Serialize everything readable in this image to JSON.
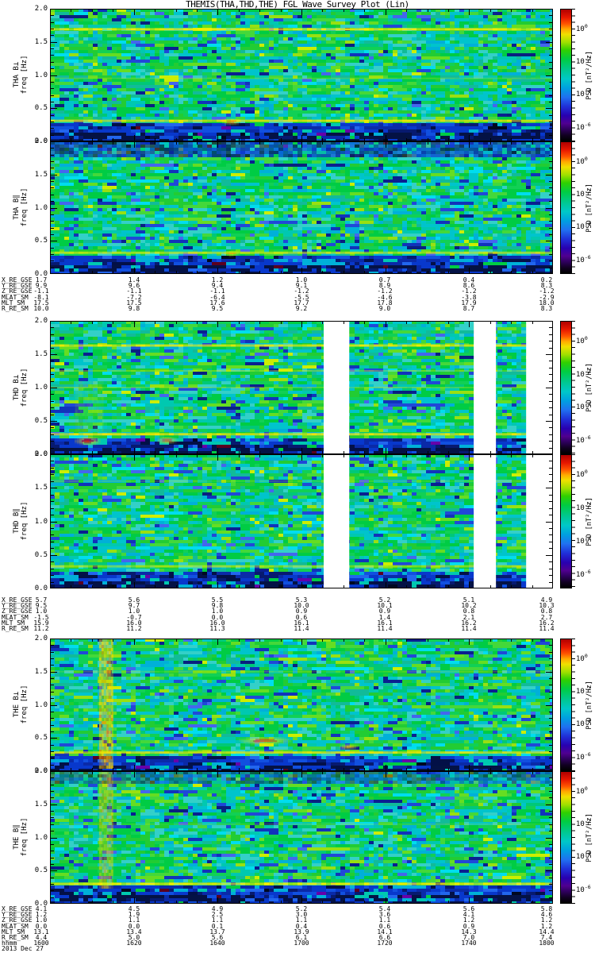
{
  "title": "THEMIS(THA,THD,THE) FGL Wave Survey Plot (Lin)",
  "colorbar": {
    "base": "10",
    "exponents": [
      "0",
      "-2",
      "-4",
      "-6"
    ],
    "positions": [
      0.13,
      0.38,
      0.625,
      0.875
    ],
    "unit_label": "PSD [nT²/Hz]"
  },
  "axes": {
    "freq_ticks": [
      "2.0",
      "1.5",
      "1.0",
      "0.5",
      "0.0"
    ],
    "freq_minor_step": 0.1,
    "time_major_min": 20,
    "time_minor_min": 5
  },
  "palette": {
    "deep": "#041245",
    "gap": "#ffffff",
    "base": [
      [
        "#00cc44",
        0.14
      ],
      [
        "#11d055",
        0.08
      ],
      [
        "#22cc33",
        0.09
      ],
      [
        "#44d83a",
        0.06
      ],
      [
        "#00c878",
        0.05
      ],
      [
        "#00c8b0",
        0.09
      ],
      [
        "#00c4cc",
        0.11
      ],
      [
        "#33d0c8",
        0.07
      ],
      [
        "#00b0d8",
        0.05
      ],
      [
        "#66dd22",
        0.04
      ],
      [
        "#99e011",
        0.018
      ],
      [
        "#ccee00",
        0.008
      ],
      [
        "#00ddee",
        0.03
      ],
      [
        "#11bb99",
        0.045
      ],
      [
        "#2048d8",
        0.03
      ],
      [
        "#1133bb",
        0.018
      ],
      [
        "#4466ee",
        0.015
      ],
      [
        "#0a1f90",
        0.012
      ],
      [
        "#082080",
        0.008
      ]
    ],
    "low": [
      [
        "#0838cc",
        0.28
      ],
      [
        "#0a2aa8",
        0.16
      ],
      [
        "#1150e0",
        0.12
      ],
      [
        "#00b0d8",
        0.09
      ],
      [
        "#071a70",
        0.1
      ],
      [
        "#00c8b0",
        0.05
      ],
      [
        "#031047",
        0.07
      ],
      [
        "#2266ee",
        0.05
      ],
      [
        "#00cc44",
        0.02
      ],
      [
        "#5a0020",
        0.012
      ],
      [
        "#000820",
        0.02
      ],
      [
        "#6600aa",
        0.008
      ]
    ]
  },
  "pairs": [
    {
      "satellite": "THA",
      "annotations": {
        "rows": [
          {
            "label": "X_RE_GSE",
            "values": [
              "1.7",
              "1.4",
              "1.2",
              "1.0",
              "0.7",
              "0.4",
              "0.2"
            ]
          },
          {
            "label": "Y_RE_GSE",
            "values": [
              "9.9",
              "9.6",
              "9.4",
              "9.1",
              "8.9",
              "8.6",
              "8.3"
            ]
          },
          {
            "label": "Z_RE_GSE",
            "values": [
              "-1.1",
              "-1.1",
              "-1.1",
              "-1.2",
              "-1.2",
              "-1.2",
              "-1.2"
            ]
          },
          {
            "label": "MLAT_SM",
            "values": [
              "-8.1",
              "-7.2",
              "-6.4",
              "-5.5",
              "-4.6",
              "-3.8",
              "-2.9"
            ]
          },
          {
            "label": "MLT_SM",
            "values": [
              "17.5",
              "17.5",
              "17.6",
              "17.7",
              "17.8",
              "17.9",
              "18.0"
            ]
          },
          {
            "label": "R_RE_SM",
            "values": [
              "10.0",
              "9.8",
              "9.5",
              "9.2",
              "9.0",
              "8.7",
              "8.3"
            ]
          }
        ]
      }
    },
    {
      "satellite": "THD",
      "annotations": {
        "rows": [
          {
            "label": "X_RE_GSE",
            "values": [
              "5.7",
              "5.6",
              "5.5",
              "5.3",
              "5.2",
              "5.1",
              "4.9"
            ]
          },
          {
            "label": "Y_RE_GSE",
            "values": [
              "9.5",
              "9.7",
              "9.8",
              "10.0",
              "10.1",
              "10.2",
              "10.3"
            ]
          },
          {
            "label": "Z_RE_GSE",
            "values": [
              "1.0",
              "1.0",
              "1.0",
              "0.9",
              "0.9",
              "0.8",
              "0.8"
            ]
          },
          {
            "label": "MLAT_SM",
            "values": [
              "-1.5",
              "-0.7",
              "0.0",
              "0.6",
              "1.4",
              "2.1",
              "2.7"
            ]
          },
          {
            "label": "MLT_SM",
            "values": [
              "15.9",
              "16.0",
              "16.0",
              "16.1",
              "16.1",
              "16.2",
              "16.2"
            ]
          },
          {
            "label": "R_RE_SM",
            "values": [
              "11.2",
              "11.2",
              "11.3",
              "11.4",
              "11.4",
              "11.4",
              "11.4"
            ]
          }
        ]
      }
    },
    {
      "satellite": "THE",
      "annotations": {
        "rows": [
          {
            "label": "X_RE_GSE",
            "values": [
              "4.1",
              "4.5",
              "4.9",
              "5.2",
              "5.4",
              "5.6",
              "5.8"
            ]
          },
          {
            "label": "Y_RE_GSE",
            "values": [
              "1.2",
              "1.9",
              "2.5",
              "3.0",
              "3.6",
              "4.1",
              "4.6"
            ]
          },
          {
            "label": "Z_RE_GSE",
            "values": [
              "1.0",
              "1.1",
              "1.1",
              "1.1",
              "1.1",
              "1.2",
              "1.2"
            ]
          },
          {
            "label": "MLAT_SM",
            "values": [
              "0.0",
              "0.0",
              "0.1",
              "0.4",
              "0.6",
              "0.9",
              "1.2"
            ]
          },
          {
            "label": "MLT_SM",
            "values": [
              "13.1",
              "13.4",
              "13.7",
              "13.9",
              "14.1",
              "14.3",
              "14.4"
            ]
          },
          {
            "label": "R_RE_SM",
            "values": [
              "4.4",
              "5.0",
              "5.6",
              "6.1",
              "6.6",
              "7.0",
              "7.4"
            ]
          }
        ]
      }
    }
  ],
  "footer": {
    "label": "hhmm",
    "times": [
      "1600",
      "1620",
      "1640",
      "1700",
      "1720",
      "1740",
      "1800"
    ],
    "date": "2013 Dec 27"
  },
  "chart_data": [
    {
      "type": "heatmap",
      "satellite": "THA",
      "component": "B-perp",
      "panel_label": "THA B⊥",
      "ylabel": "freq [Hz]",
      "ylim": [
        0,
        2
      ],
      "xlim_hhmm": [
        "1600",
        "1800"
      ],
      "duration_min": 120,
      "zlabel": "PSD [nT²/Hz]",
      "zticks": [
        "10^0",
        "10^-2",
        "10^-4",
        "10^-6"
      ],
      "low_band_f": 0.27,
      "gaps": [],
      "features": [
        {
          "kind": "hline",
          "f": 1.69,
          "color": "#ffee00",
          "h": 3,
          "alpha": 0.95
        },
        {
          "kind": "hline",
          "f": 0.95,
          "color": "#ddee00",
          "h": 2,
          "alpha": 0.3
        },
        {
          "kind": "hline",
          "f": 0.31,
          "color": "#ffe600",
          "h": 3,
          "alpha": 0.9
        },
        {
          "kind": "blob",
          "t": 43,
          "f": 0.31,
          "dt": 2.5,
          "df": 0.055,
          "core": "#ff8800",
          "halo": "#ffee00"
        }
      ]
    },
    {
      "type": "heatmap",
      "satellite": "THA",
      "component": "B-parallel",
      "panel_label": "THA B∥",
      "ylabel": "freq [Hz]",
      "ylim": [
        0,
        2
      ],
      "xlim_hhmm": [
        "1600",
        "1800"
      ],
      "duration_min": 120,
      "zlabel": "PSD [nT²/Hz]",
      "zticks": [
        "10^0",
        "10^-2",
        "10^-4",
        "10^-6"
      ],
      "low_band_f": 0.27,
      "gaps": [],
      "features": [
        {
          "kind": "band",
          "f0": 1.8,
          "f1": 2.0,
          "alpha": 0.85
        },
        {
          "kind": "hline",
          "f": 0.32,
          "color": "#eeee00",
          "h": 3,
          "alpha": 0.8
        },
        {
          "kind": "blob",
          "t": 43,
          "f": 0.32,
          "dt": 2,
          "df": 0.05,
          "core": "#ffaa00",
          "halo": "#eeee00"
        }
      ]
    },
    {
      "type": "heatmap",
      "satellite": "THD",
      "component": "B-perp",
      "panel_label": "THD B⊥",
      "ylabel": "freq [Hz]",
      "ylim": [
        0,
        2
      ],
      "xlim_hhmm": [
        "1600",
        "1800"
      ],
      "duration_min": 120,
      "zlabel": "PSD [nT²/Hz]",
      "zticks": [
        "10^0",
        "10^-2",
        "10^-4",
        "10^-6"
      ],
      "low_band_f": 0.25,
      "gaps": [
        [
          65.3,
          71.4
        ],
        [
          101.1,
          106.4
        ],
        [
          113.6,
          120
        ]
      ],
      "features": [
        {
          "kind": "vstripe",
          "t0": 6,
          "t1": 12.5,
          "f0": 0.35,
          "f1": 1.1,
          "color": "#bbee00",
          "alpha": 0.22
        },
        {
          "kind": "hline",
          "f": 1.63,
          "color": "#ffee00",
          "h": 3,
          "alpha": 0.9
        },
        {
          "kind": "hline",
          "f": 1.25,
          "color": "#eeee00",
          "h": 2,
          "alpha": 0.45
        },
        {
          "kind": "hline",
          "f": 1.0,
          "color": "#ddee00",
          "h": 2,
          "alpha": 0.4
        },
        {
          "kind": "hline",
          "f": 0.3,
          "color": "#ffe600",
          "h": 3,
          "alpha": 0.95
        },
        {
          "kind": "blob",
          "t": 8.7,
          "f": 0.21,
          "dt": 3.4,
          "df": 0.07,
          "core": "#ee1100",
          "halo": "#ffcc00"
        },
        {
          "kind": "blob",
          "t": 27.7,
          "f": 0.22,
          "dt": 2.6,
          "df": 0.06,
          "core": "#ff6600",
          "halo": "#ffdd00"
        }
      ]
    },
    {
      "type": "heatmap",
      "satellite": "THD",
      "component": "B-parallel",
      "panel_label": "THD B∥",
      "ylabel": "freq [Hz]",
      "ylim": [
        0,
        2
      ],
      "xlim_hhmm": [
        "1600",
        "1800"
      ],
      "duration_min": 120,
      "zlabel": "PSD [nT²/Hz]",
      "zticks": [
        "10^0",
        "10^-2",
        "10^-4",
        "10^-6"
      ],
      "low_band_f": 0.27,
      "gaps": [
        [
          65.3,
          71.4
        ],
        [
          101.1,
          106.4
        ],
        [
          113.6,
          120
        ]
      ],
      "features": [
        {
          "kind": "hline",
          "f": 1.6,
          "color": "#ccee00",
          "h": 2,
          "alpha": 0.3
        },
        {
          "kind": "hline",
          "f": 0.33,
          "color": "#ddee00",
          "h": 3,
          "alpha": 0.7
        }
      ]
    },
    {
      "type": "heatmap",
      "satellite": "THE",
      "component": "B-perp",
      "panel_label": "THE B⊥",
      "ylabel": "freq [Hz]",
      "ylim": [
        0,
        2
      ],
      "xlim_hhmm": [
        "1600",
        "1800"
      ],
      "duration_min": 120,
      "zlabel": "PSD [nT²/Hz]",
      "zticks": [
        "10^0",
        "10^-2",
        "10^-4",
        "10^-6"
      ],
      "low_band_f": 0.25,
      "gaps": [],
      "features": [
        {
          "kind": "vstripe",
          "t0": 11.7,
          "t1": 14.8,
          "f0": 0.04,
          "f1": 2,
          "color": "#ffd800",
          "alpha": 0.8
        },
        {
          "kind": "hline",
          "f": 1.5,
          "color": "#ddee00",
          "h": 2,
          "alpha": 0.3
        },
        {
          "kind": "hline",
          "f": 0.28,
          "color": "#ffe600",
          "h": 3,
          "alpha": 0.85
        },
        {
          "kind": "blob",
          "t": 51,
          "f": 0.47,
          "dt": 6.5,
          "df": 0.065,
          "core": "#ff5500",
          "halo": "#ffee00"
        },
        {
          "kind": "blob",
          "t": 71,
          "f": 0.38,
          "dt": 2.5,
          "df": 0.045,
          "core": "#ffcc00",
          "halo": "#dddd00"
        }
      ]
    },
    {
      "type": "heatmap",
      "satellite": "THE",
      "component": "B-parallel",
      "panel_label": "THE B∥",
      "ylabel": "freq [Hz]",
      "ylim": [
        0,
        2
      ],
      "xlim_hhmm": [
        "1600",
        "1800"
      ],
      "duration_min": 120,
      "zlabel": "PSD [nT²/Hz]",
      "zticks": [
        "10^0",
        "10^-2",
        "10^-4",
        "10^-6"
      ],
      "low_band_f": 0.27,
      "gaps": [],
      "features": [
        {
          "kind": "band",
          "f0": 1.85,
          "f1": 2.0,
          "alpha": 0.6
        },
        {
          "kind": "vstripe",
          "t0": 11.7,
          "t1": 14.8,
          "f0": 0.25,
          "f1": 2,
          "color": "#ffd800",
          "alpha": 0.55
        },
        {
          "kind": "hline",
          "f": 1.2,
          "color": "#ccee00",
          "h": 2,
          "alpha": 0.25
        },
        {
          "kind": "hline",
          "f": 0.3,
          "color": "#ffee00",
          "h": 3,
          "alpha": 0.95
        }
      ]
    }
  ]
}
